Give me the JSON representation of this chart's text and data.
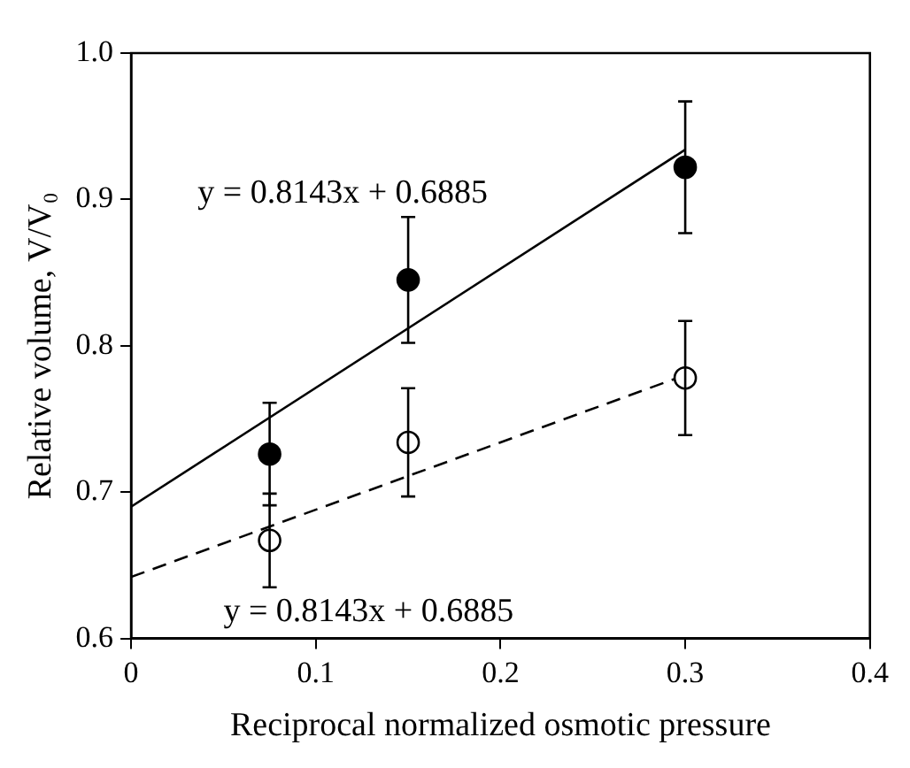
{
  "chart_data": {
    "type": "scatter",
    "xlabel": "Reciprocal normalized osmotic pressure",
    "ylabel": "Relative volume, V/V₀",
    "xlim": [
      0,
      0.4
    ],
    "xticks": [
      0,
      0.1,
      0.2,
      0.3,
      0.4
    ],
    "ylim": [
      0.6,
      1.0
    ],
    "yticks": [
      0.6,
      0.7,
      0.8,
      0.9,
      {
        "value": 1.0,
        "label": "1.0"
      }
    ],
    "grid": false,
    "legend": false,
    "series": [
      {
        "color": "#000000",
        "marker": "circle",
        "x": [
          0.075,
          0.15,
          0.3
        ],
        "values": [
          0.726,
          0.845,
          0.922
        ],
        "errors": [
          0.035,
          0.043,
          0.045
        ]
      },
      {
        "color": "#000000",
        "marker": "circle",
        "x": [
          0.075,
          0.15,
          0.3
        ],
        "values": [
          0.667,
          0.734,
          0.778
        ],
        "errors": [
          0.032,
          0.037,
          0.039
        ]
      },
      {
        "type": "line",
        "color": "#000000",
        "marker": "none",
        "line_style": "solid",
        "x": [
          0,
          0.3
        ],
        "values": [
          0.69,
          0.934
        ]
      },
      {
        "type": "line",
        "color": "#000000",
        "marker": "none",
        "line_style": "dashed",
        "x": [
          0,
          0.3
        ],
        "values": [
          0.642,
          0.78
        ]
      }
    ],
    "annotations": [
      "y = 0.8143x + 0.6885",
      "y = 0.8143x + 0.6885"
    ]
  }
}
